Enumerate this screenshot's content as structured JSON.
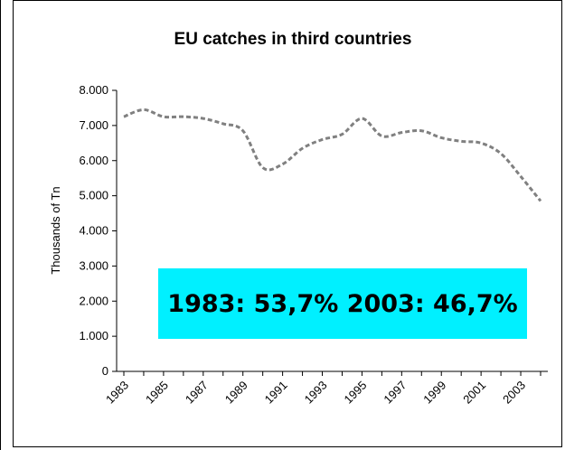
{
  "chart_data": {
    "type": "line",
    "title": "EU catches in third countries",
    "xlabel": "",
    "ylabel": "Thousands of Tn",
    "x": [
      1983,
      1984,
      1985,
      1986,
      1987,
      1988,
      1989,
      1990,
      1991,
      1992,
      1993,
      1994,
      1995,
      1996,
      1997,
      1998,
      1999,
      2000,
      2001,
      2002,
      2003,
      2004
    ],
    "x_tick_labels": [
      "1983",
      "1985",
      "1987",
      "1989",
      "1991",
      "1993",
      "1995",
      "1997",
      "1999",
      "2001",
      "2003"
    ],
    "y_tick_labels": [
      "0",
      "1.000",
      "2.000",
      "3.000",
      "4.000",
      "5.000",
      "6.000",
      "7.000",
      "8.000"
    ],
    "ylim": [
      0,
      8000
    ],
    "series": [
      {
        "values": [
          7250,
          7450,
          7250,
          7250,
          7200,
          7050,
          6850,
          5800,
          5900,
          6350,
          6600,
          6750,
          7200,
          6700,
          6800,
          6850,
          6650,
          6550,
          6500,
          6200,
          5550,
          4850
        ],
        "color": "#808080",
        "style": "dashed"
      }
    ],
    "grid": false,
    "legend": "none",
    "annotation": "1983: 53,7% 2003: 46,7%",
    "annotation_color": "#00f0ff"
  }
}
